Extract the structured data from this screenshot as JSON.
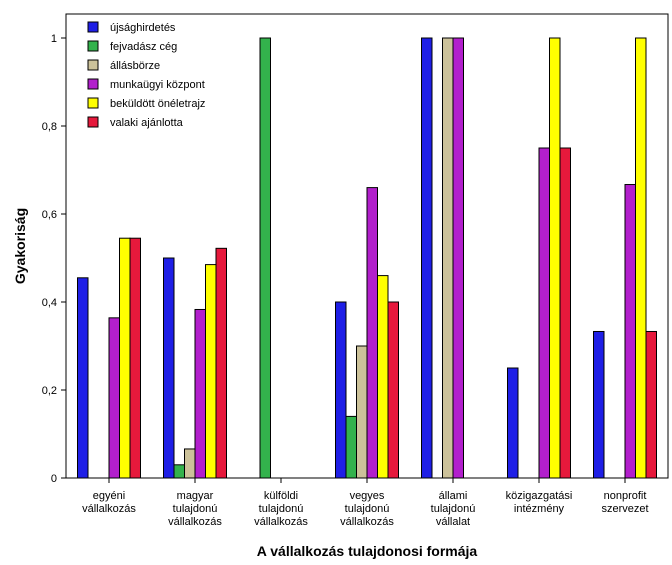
{
  "chart_data": {
    "type": "bar",
    "xlabel": "A vállalkozás tulajdonosi formája",
    "ylabel": "Gyakoriság",
    "ylim": [
      0,
      1.1
    ],
    "yticks": [
      0,
      0.2,
      0.4,
      0.6,
      0.8,
      1
    ],
    "ytick_labels": [
      "0",
      "0,2",
      "0,4",
      "0,6",
      "0,8",
      "1"
    ],
    "legend_position": "top-left",
    "grid": false,
    "categories": [
      [
        "egyéni",
        "vállalkozás"
      ],
      [
        "magyar",
        "tulajdonú",
        "vállalkozás"
      ],
      [
        "külföldi",
        "tulajdonú",
        "vállalkozás"
      ],
      [
        "vegyes",
        "tulajdonú",
        "vállalkozás"
      ],
      [
        "állami",
        "tulajdonú",
        "vállalat"
      ],
      [
        "közigazgatási",
        "intézmény"
      ],
      [
        "nonprofit",
        "szervezet"
      ]
    ],
    "series": [
      {
        "name": "újsághirdetés",
        "color": "#1f1fe6",
        "values": [
          0.455,
          0.5,
          0,
          0.4,
          1,
          0.25,
          0.333
        ]
      },
      {
        "name": "fejvadász cég",
        "color": "#33b24c",
        "values": [
          0,
          0.03,
          1,
          0.14,
          0,
          0,
          0
        ]
      },
      {
        "name": "állásbörze",
        "color": "#ccc29a",
        "values": [
          0,
          0.066,
          0,
          0.3,
          1,
          0,
          0
        ]
      },
      {
        "name": "munkaügyi központ",
        "color": "#b21fcc",
        "values": [
          0.364,
          0.383,
          0,
          0.66,
          1,
          0.75,
          0.667
        ]
      },
      {
        "name": "beküldött önéletrajz",
        "color": "#ffff00",
        "values": [
          0.545,
          0.485,
          0,
          0.46,
          0,
          1,
          1
        ]
      },
      {
        "name": "valaki ajánlotta",
        "color": "#e6193c",
        "values": [
          0.545,
          0.522,
          0,
          0.4,
          0,
          0.75,
          0.333
        ]
      }
    ]
  }
}
